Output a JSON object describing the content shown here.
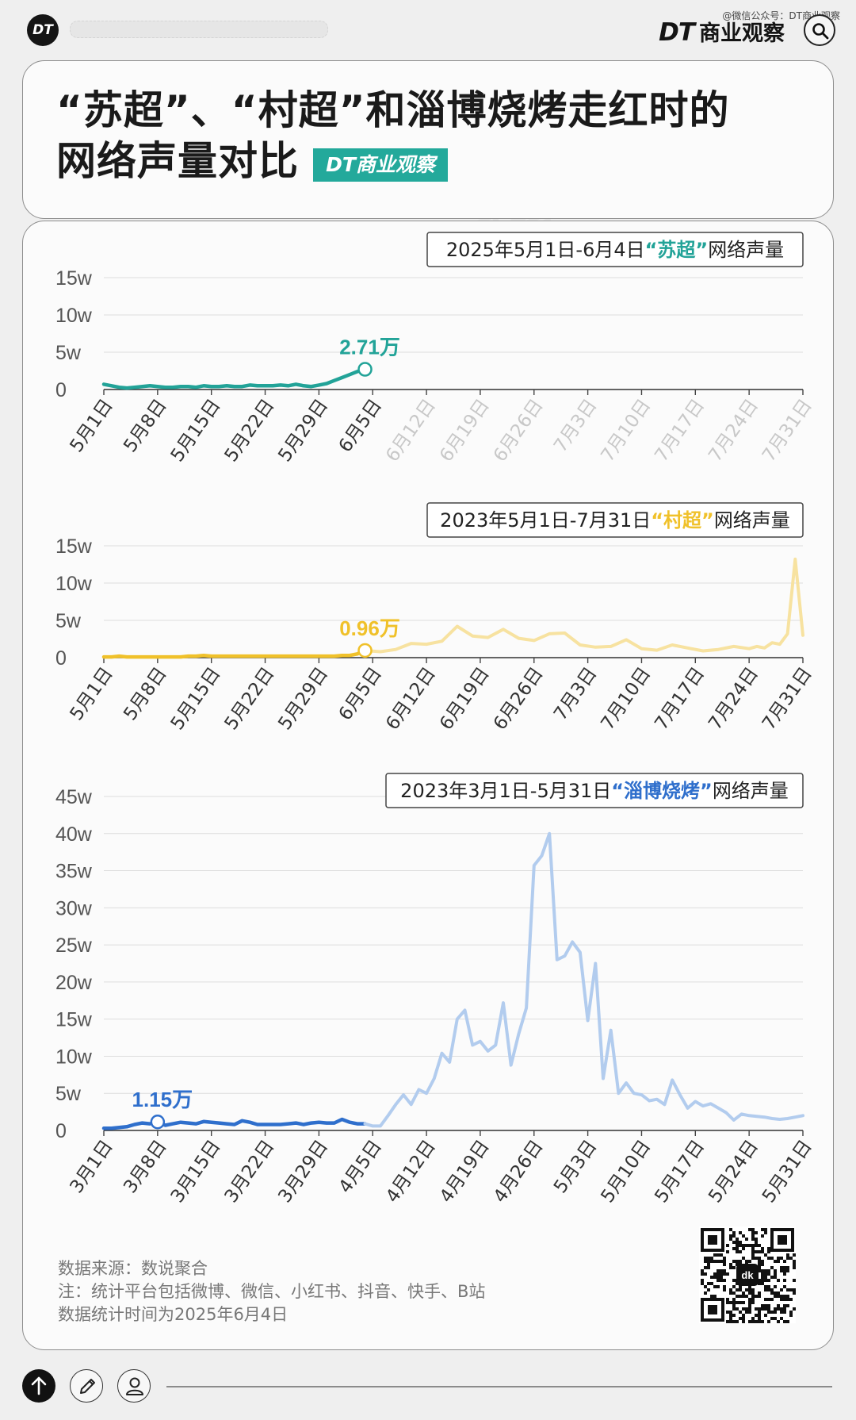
{
  "header": {
    "logo_text": "DT",
    "small_watermark": "@微信公众号：DT商业观察",
    "brand_dt": "DT",
    "brand_name": "商业观察",
    "search_icon": "search-icon"
  },
  "title": {
    "line1": "“苏超”、“村超”和淄博烧烤走红时的",
    "line2": "网络声量对比",
    "badge": "DT商业观察"
  },
  "chart_data": [
    {
      "type": "line",
      "legend": {
        "prefix": "2025年5月1日-6月4日",
        "highlight": "“苏超”",
        "suffix": "网络声量"
      },
      "color": "#22a398",
      "categories": [
        "5月1日",
        "5月8日",
        "5月15日",
        "5月22日",
        "5月29日",
        "6月5日",
        "6月12日",
        "6月19日",
        "6月26日",
        "7月3日",
        "7月10日",
        "7月17日",
        "7月24日",
        "7月31日"
      ],
      "active_ticks": 6,
      "yticks": [
        "0",
        "5w",
        "10w",
        "15w"
      ],
      "ylim": [
        0,
        15
      ],
      "xlim": [
        0,
        91
      ],
      "y_unit": "万",
      "series": [
        {
          "x": [
            0,
            1,
            2,
            3,
            4,
            5,
            6,
            7,
            8,
            9,
            10,
            11,
            12,
            13,
            14,
            15,
            16,
            17,
            18,
            19,
            20,
            21,
            22,
            23,
            24,
            25,
            26,
            27,
            28,
            29,
            30,
            31,
            32,
            33,
            34
          ],
          "values": [
            0.7,
            0.5,
            0.3,
            0.2,
            0.3,
            0.4,
            0.5,
            0.4,
            0.3,
            0.3,
            0.4,
            0.4,
            0.3,
            0.5,
            0.4,
            0.4,
            0.5,
            0.4,
            0.4,
            0.6,
            0.5,
            0.5,
            0.5,
            0.6,
            0.5,
            0.7,
            0.5,
            0.4,
            0.6,
            0.8,
            1.2,
            1.6,
            2.0,
            2.4,
            2.71
          ]
        }
      ],
      "annotation": {
        "label": "2.71万",
        "x": 34,
        "y": 2.71
      }
    },
    {
      "type": "line",
      "legend": {
        "prefix": "2023年5月1日-7月31日",
        "highlight": "“村超”",
        "suffix": "网络声量"
      },
      "color": "#f0c12a",
      "faded_color": "#f7e2a0",
      "categories": [
        "5月1日",
        "5月8日",
        "5月15日",
        "5月22日",
        "5月29日",
        "6月5日",
        "6月12日",
        "6月19日",
        "6月26日",
        "7月3日",
        "7月10日",
        "7月17日",
        "7月24日",
        "7月31日"
      ],
      "active_ticks": 14,
      "yticks": [
        "0",
        "5w",
        "10w",
        "15w"
      ],
      "ylim": [
        0,
        15
      ],
      "xlim": [
        0,
        91
      ],
      "y_unit": "万",
      "series": [
        {
          "name": "highlight",
          "x": [
            0,
            1,
            2,
            3,
            4,
            5,
            6,
            7,
            8,
            9,
            10,
            11,
            12,
            13,
            14,
            15,
            16,
            17,
            18,
            19,
            20,
            21,
            22,
            23,
            24,
            25,
            26,
            27,
            28,
            29,
            30,
            31,
            32,
            33,
            34
          ],
          "values": [
            0.1,
            0.1,
            0.2,
            0.1,
            0.1,
            0.1,
            0.1,
            0.1,
            0.1,
            0.1,
            0.1,
            0.2,
            0.2,
            0.3,
            0.2,
            0.2,
            0.2,
            0.2,
            0.2,
            0.2,
            0.2,
            0.2,
            0.2,
            0.2,
            0.2,
            0.2,
            0.2,
            0.2,
            0.2,
            0.2,
            0.2,
            0.3,
            0.3,
            0.5,
            0.96
          ]
        },
        {
          "name": "rest",
          "x": [
            34,
            36,
            38,
            40,
            42,
            44,
            46,
            48,
            50,
            52,
            54,
            56,
            58,
            60,
            62,
            64,
            66,
            68,
            70,
            72,
            74,
            76,
            78,
            80,
            82,
            84,
            85,
            86,
            87,
            88,
            89,
            90,
            91
          ],
          "values": [
            0.96,
            0.8,
            1.1,
            1.9,
            1.8,
            2.2,
            4.2,
            2.9,
            2.7,
            3.8,
            2.6,
            2.3,
            3.2,
            3.3,
            1.7,
            1.4,
            1.5,
            2.4,
            1.2,
            1.0,
            1.7,
            1.3,
            0.9,
            1.1,
            1.5,
            1.2,
            1.5,
            1.3,
            2.0,
            1.8,
            3.2,
            13.2,
            3.0
          ]
        }
      ],
      "annotation": {
        "label": "0.96万",
        "x": 34,
        "y": 0.96
      }
    },
    {
      "type": "line",
      "legend": {
        "prefix": "2023年3月1日-5月31日",
        "highlight": "“淄博烧烤”",
        "suffix": "网络声量"
      },
      "color": "#2f6fcc",
      "faded_color": "#b2ccee",
      "categories": [
        "3月1日",
        "3月8日",
        "3月15日",
        "3月22日",
        "3月29日",
        "4月5日",
        "4月12日",
        "4月19日",
        "4月26日",
        "5月3日",
        "5月10日",
        "5月17日",
        "5月24日",
        "5月31日"
      ],
      "active_ticks": 14,
      "yticks": [
        "0",
        "5w",
        "10w",
        "15w",
        "20w",
        "25w",
        "30w",
        "35w",
        "40w",
        "45w"
      ],
      "ylim": [
        0,
        45
      ],
      "xlim": [
        0,
        91
      ],
      "y_unit": "万",
      "series": [
        {
          "name": "highlight",
          "x": [
            0,
            1,
            2,
            3,
            4,
            5,
            6,
            7,
            8,
            9,
            10,
            11,
            12,
            13,
            14,
            15,
            16,
            17,
            18,
            19,
            20,
            21,
            22,
            23,
            24,
            25,
            26,
            27,
            28,
            29,
            30,
            31,
            32,
            33,
            34
          ],
          "values": [
            0.3,
            0.3,
            0.4,
            0.5,
            0.8,
            1.0,
            0.9,
            1.15,
            0.7,
            0.9,
            1.1,
            1.0,
            0.9,
            1.2,
            1.1,
            1.0,
            0.9,
            0.8,
            1.3,
            1.1,
            0.8,
            0.8,
            0.8,
            0.8,
            0.9,
            1.0,
            0.8,
            1.0,
            1.1,
            1.0,
            1.0,
            1.5,
            1.1,
            0.9,
            0.9
          ]
        },
        {
          "name": "rest",
          "x": [
            34,
            35,
            36,
            37,
            38,
            39,
            40,
            41,
            42,
            43,
            44,
            45,
            46,
            47,
            48,
            49,
            50,
            51,
            52,
            53,
            54,
            55,
            56,
            57,
            58,
            59,
            60,
            61,
            62,
            63,
            64,
            65,
            66,
            67,
            68,
            69,
            70,
            71,
            72,
            73,
            74,
            75,
            76,
            77,
            78,
            79,
            80,
            81,
            82,
            83,
            84,
            85,
            86,
            87,
            88,
            89,
            90,
            91
          ],
          "values": [
            0.9,
            0.6,
            0.6,
            2.0,
            3.5,
            4.8,
            3.5,
            5.5,
            5.0,
            7.0,
            10.4,
            9.2,
            15.0,
            16.2,
            11.5,
            12.0,
            10.7,
            11.5,
            17.2,
            8.8,
            13.0,
            16.5,
            35.7,
            37.0,
            40.0,
            23.0,
            23.5,
            25.4,
            24.0,
            14.8,
            22.5,
            7.0,
            13.5,
            5.0,
            6.4,
            5.0,
            4.8,
            4.0,
            4.2,
            3.5,
            6.8,
            4.8,
            3.0,
            3.9,
            3.3,
            3.6,
            3.0,
            2.4,
            1.4,
            2.2,
            2.0,
            1.9,
            1.8,
            1.6,
            1.5,
            1.6,
            1.8,
            2.0
          ]
        }
      ],
      "annotation": {
        "label": "1.15万",
        "x": 7,
        "y": 1.15
      }
    }
  ],
  "footer": {
    "source": "数据来源：数说聚合",
    "note": "注：统计平台包括微博、微信、小红书、抖音、快手、B站",
    "date": "数据统计时间为2025年6月4日",
    "qr_center": "dk"
  }
}
